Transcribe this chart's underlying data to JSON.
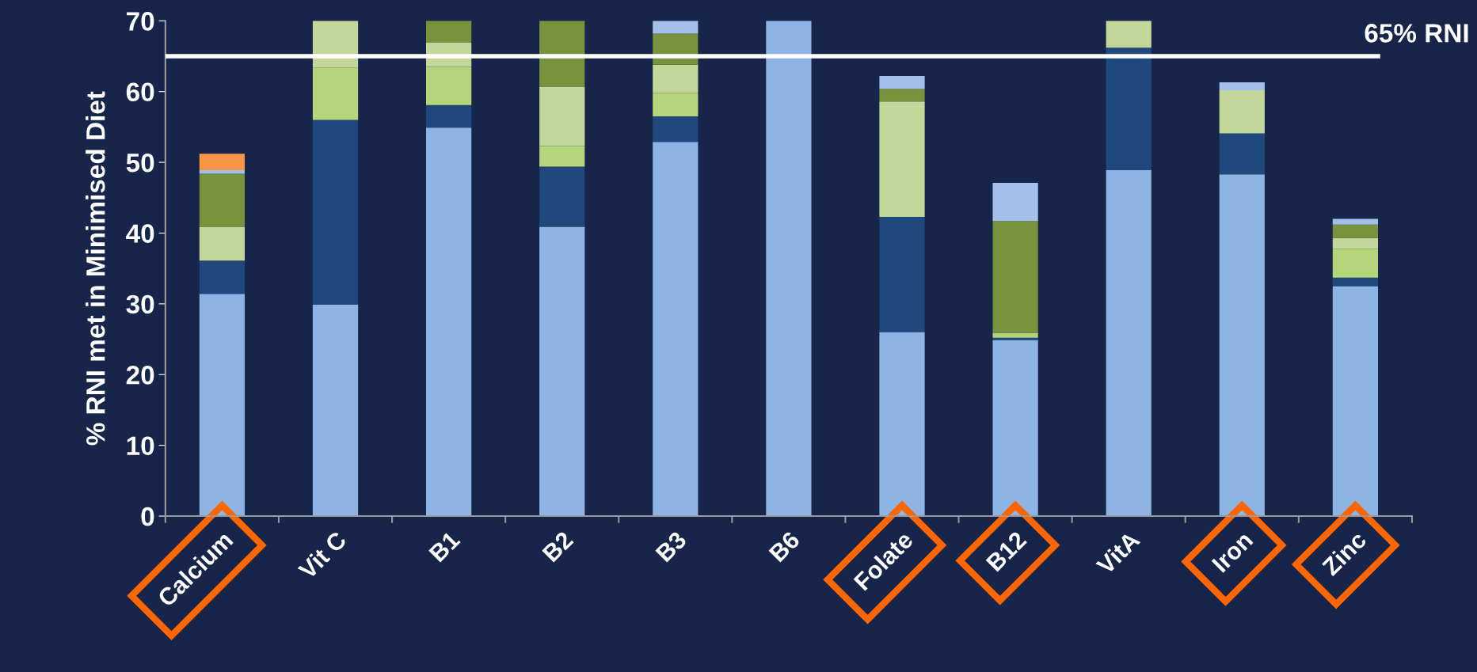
{
  "chart_data": {
    "type": "bar",
    "stacked": true,
    "ylabel": "% RNI met in Minimised Diet",
    "categories": [
      "Calcium",
      "Vit C",
      "B1",
      "B2",
      "B3",
      "B6",
      "Folate",
      "B12",
      "VitA",
      "Iron",
      "Zinc"
    ],
    "series": [
      {
        "color": "#8eb4e3",
        "values": [
          31.4,
          29.9,
          54.9,
          40.9,
          52.9,
          70,
          26.0,
          24.9,
          48.9,
          48.3,
          32.5
        ]
      },
      {
        "color": "#1f497d",
        "values": [
          4.7,
          26.1,
          3.2,
          8.5,
          3.6,
          null,
          16.3,
          0.3,
          17.3,
          5.8,
          1.2
        ]
      },
      {
        "color": "#b5d57a",
        "values": [
          null,
          7.4,
          5.4,
          2.9,
          3.3,
          null,
          null,
          0.7,
          null,
          null,
          4.1
        ]
      },
      {
        "color": "#c4d79b",
        "values": [
          4.8,
          6.6,
          3.4,
          8.4,
          4.0,
          null,
          16.3,
          null,
          3.8,
          6.1,
          1.5
        ]
      },
      {
        "color": "#77933c",
        "values": [
          7.5,
          null,
          3.1,
          9.3,
          4.4,
          null,
          1.8,
          15.8,
          null,
          null,
          1.9
        ]
      },
      {
        "color": "#a3bfea",
        "values": [
          0.5,
          null,
          null,
          null,
          1.8,
          null,
          1.8,
          5.4,
          null,
          1.1,
          0.8
        ]
      },
      {
        "color": "#f79646",
        "values": [
          2.3,
          null,
          null,
          null,
          null,
          null,
          null,
          null,
          null,
          null,
          null
        ]
      }
    ],
    "ylim": [
      0,
      70
    ],
    "yticks": [
      0,
      10,
      20,
      30,
      40,
      50,
      60,
      70
    ],
    "grid": false,
    "legend": false,
    "ref_lines": [
      {
        "axis": "y",
        "value": 65,
        "label": "65% RNI",
        "color": "#ffffff"
      }
    ]
  }
}
